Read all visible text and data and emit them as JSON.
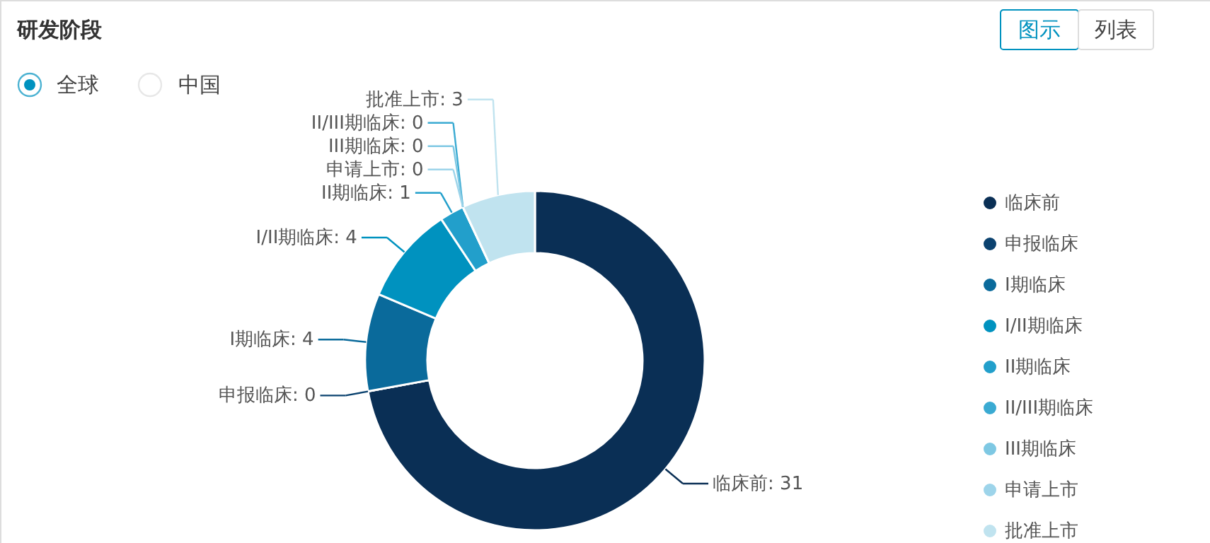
{
  "chart_data": {
    "type": "donut",
    "title": "研发阶段",
    "categories": [
      "临床前",
      "申报临床",
      "I期临床",
      "I/II期临床",
      "II期临床",
      "II/III期临床",
      "III期临床",
      "申请上市",
      "批准上市"
    ],
    "values": [
      31,
      0,
      4,
      4,
      1,
      0,
      0,
      0,
      3
    ],
    "colors": [
      "#0a2f55",
      "#0b426f",
      "#0a6a9b",
      "#0092bf",
      "#229fcb",
      "#3aaad2",
      "#7ec8e3",
      "#9dd4ea",
      "#c0e3ef"
    ],
    "value_labels": [
      "临床前: 31",
      "申报临床: 0",
      "I期临床: 4",
      "I/II期临床: 4",
      "II期临床: 1",
      "II/III期临床: 0",
      "III期临床: 0",
      "申请上市: 0",
      "批准上市: 3"
    ],
    "legend": "right",
    "annotations": [
      "全球",
      "中国",
      "图示",
      "列表"
    ]
  }
}
